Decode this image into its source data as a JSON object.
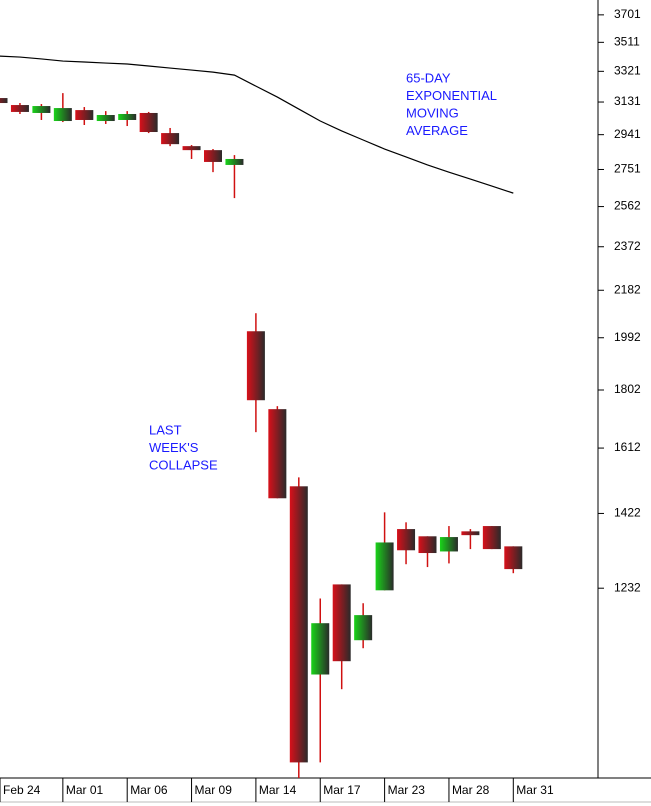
{
  "chart_data": {
    "type": "candlestick",
    "categories": [
      "Feb 24",
      null,
      null,
      "Mar 01",
      null,
      null,
      "Mar 06",
      null,
      null,
      "Mar 09",
      null,
      null,
      "Mar 14",
      null,
      null,
      "Mar 17",
      null,
      null,
      "Mar 23",
      null,
      null,
      "Mar 28",
      null,
      null,
      "Mar 31"
    ],
    "open": [
      3155,
      3113,
      3066,
      3019,
      3083,
      3019,
      3025,
      3066,
      2950,
      2877,
      2855,
      2775,
      2017,
      1737,
      1498,
      1044,
      1241,
      1115,
      1227,
      1380,
      1361,
      1322,
      1374,
      1388,
      1335
    ],
    "high": [
      3155,
      3125,
      3119,
      3185,
      3101,
      3077,
      3077,
      3072,
      2979,
      2883,
      2861,
      2828,
      2088,
      1747,
      1524,
      1208,
      1241,
      1197,
      1425,
      1398,
      1361,
      1388,
      1380,
      1388,
      1335
    ],
    "low": [
      3125,
      3060,
      3025,
      3013,
      2996,
      3002,
      2990,
      2950,
      2877,
      2807,
      2737,
      2604,
      1662,
      1464,
      856,
      882,
      1015,
      1098,
      1227,
      1290,
      1283,
      1292,
      1328,
      1328,
      1268
    ],
    "close": [
      3125,
      3072,
      3107,
      3095,
      3025,
      3054,
      3060,
      2956,
      2888,
      2855,
      2791,
      2807,
      1767,
      1464,
      882,
      1152,
      1071,
      1170,
      1345,
      1325,
      1318,
      1359,
      1364,
      1328,
      1278
    ],
    "moving_average": [
      3420,
      3413,
      3401,
      3387,
      3381,
      3374,
      3368,
      3355,
      3342,
      3329,
      3316,
      3297,
      3228,
      3161,
      3089,
      3019,
      2962,
      2911,
      2861,
      2818,
      2775,
      2737,
      2701,
      2665,
      2629
    ],
    "up_color": "#19d419",
    "down_color": "#d8101a",
    "wick_color": "#d01010",
    "ma_color": "#000000",
    "log_scale": true,
    "ylim": [
      856,
      3808
    ],
    "yticks": [
      1232,
      1422,
      1612,
      1802,
      1992,
      2182,
      2372,
      2562,
      2751,
      2941,
      3131,
      3321,
      3511,
      3701
    ],
    "annotations": [
      {
        "lines": [
          "65-DAY",
          "EXPONENTIAL",
          "MOVING",
          "AVERAGE"
        ]
      },
      {
        "lines": [
          "LAST",
          "WEEK'S",
          "COLLAPSE"
        ]
      }
    ]
  }
}
